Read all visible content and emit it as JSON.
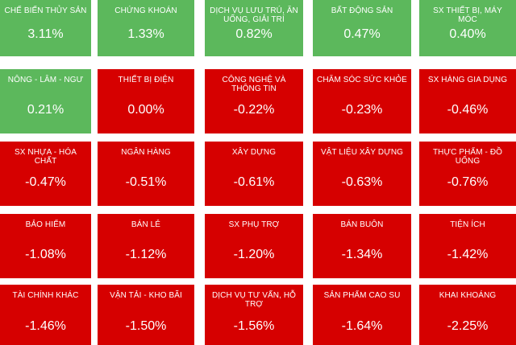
{
  "colors": {
    "up": "#5cb85c",
    "down": "#d60000"
  },
  "tiles": [
    {
      "name": "CHẾ BIẾN THỦY SẢN",
      "value": "3.11%",
      "trend": "up"
    },
    {
      "name": "CHỨNG KHOÁN",
      "value": "1.33%",
      "trend": "up"
    },
    {
      "name": "DỊCH VỤ LƯU TRÚ, ĂN UỐNG, GIẢI TRÍ",
      "value": "0.82%",
      "trend": "up"
    },
    {
      "name": "BẤT ĐỘNG SẢN",
      "value": "0.47%",
      "trend": "up"
    },
    {
      "name": "SX THIẾT BỊ, MÁY MÓC",
      "value": "0.40%",
      "trend": "up"
    },
    {
      "name": "NÔNG - LÂM - NGƯ",
      "value": "0.21%",
      "trend": "up"
    },
    {
      "name": "THIẾT BỊ ĐIỆN",
      "value": "0.00%",
      "trend": "down"
    },
    {
      "name": "CÔNG NGHỆ VÀ THÔNG TIN",
      "value": "-0.22%",
      "trend": "down"
    },
    {
      "name": "CHĂM SÓC SỨC KHỎE",
      "value": "-0.23%",
      "trend": "down"
    },
    {
      "name": "SX HÀNG GIA DỤNG",
      "value": "-0.46%",
      "trend": "down"
    },
    {
      "name": "SX NHỰA - HÓA CHẤT",
      "value": "-0.47%",
      "trend": "down"
    },
    {
      "name": "NGÂN HÀNG",
      "value": "-0.51%",
      "trend": "down"
    },
    {
      "name": "XÂY DỰNG",
      "value": "-0.61%",
      "trend": "down"
    },
    {
      "name": "VẬT LIỆU XÂY DỰNG",
      "value": "-0.63%",
      "trend": "down"
    },
    {
      "name": "THỰC PHẨM - ĐỒ UỐNG",
      "value": "-0.76%",
      "trend": "down"
    },
    {
      "name": "BẢO HIỂM",
      "value": "-1.08%",
      "trend": "down"
    },
    {
      "name": "BÁN LẺ",
      "value": "-1.12%",
      "trend": "down"
    },
    {
      "name": "SX PHỤ TRỢ",
      "value": "-1.20%",
      "trend": "down"
    },
    {
      "name": "BÁN BUÔN",
      "value": "-1.34%",
      "trend": "down"
    },
    {
      "name": "TIỆN ÍCH",
      "value": "-1.42%",
      "trend": "down"
    },
    {
      "name": "TÀI CHÍNH KHÁC",
      "value": "-1.46%",
      "trend": "down"
    },
    {
      "name": "VẬN TẢI - KHO BÃI",
      "value": "-1.50%",
      "trend": "down"
    },
    {
      "name": "DỊCH VỤ TƯ VẤN, HỖ TRỢ",
      "value": "-1.56%",
      "trend": "down"
    },
    {
      "name": "SẢN PHẨM CAO SU",
      "value": "-1.64%",
      "trend": "down"
    },
    {
      "name": "KHAI KHOÁNG",
      "value": "-2.25%",
      "trend": "down"
    }
  ]
}
